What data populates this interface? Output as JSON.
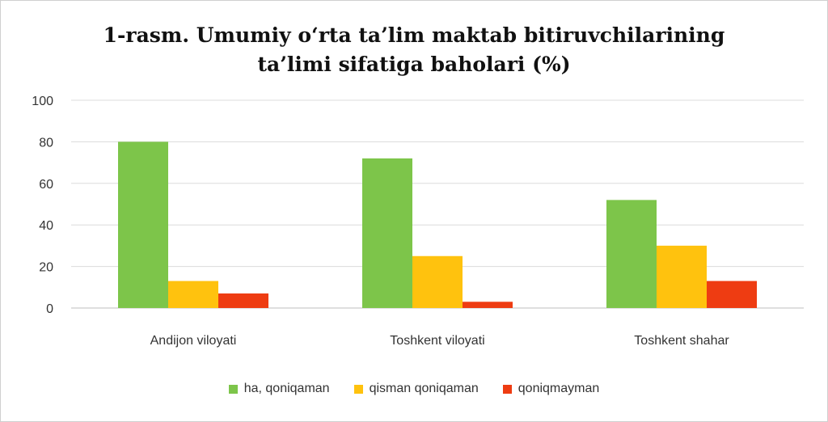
{
  "chart_data": {
    "type": "bar",
    "title_line1": "1-rasm. Umumiy o‘rta ta’lim maktab bitiruvchilarining",
    "title_line2": "ta’limi sifatiga baholari (%)",
    "categories": [
      "Andijon viloyati",
      "Toshkent viloyati",
      "Toshkent shahar"
    ],
    "series": [
      {
        "name": "ha, qoniqaman",
        "color": "#7dc54a",
        "values": [
          80,
          72,
          52
        ]
      },
      {
        "name": "qisman qoniqaman",
        "color": "#ffc20e",
        "values": [
          13,
          25,
          30
        ]
      },
      {
        "name": "qoniqmayman",
        "color": "#ee3c12",
        "values": [
          7,
          3,
          13
        ]
      }
    ],
    "ylim": [
      0,
      100
    ],
    "yticks": [
      0,
      20,
      40,
      60,
      80,
      100
    ],
    "grid": true,
    "legend_position": "bottom"
  }
}
